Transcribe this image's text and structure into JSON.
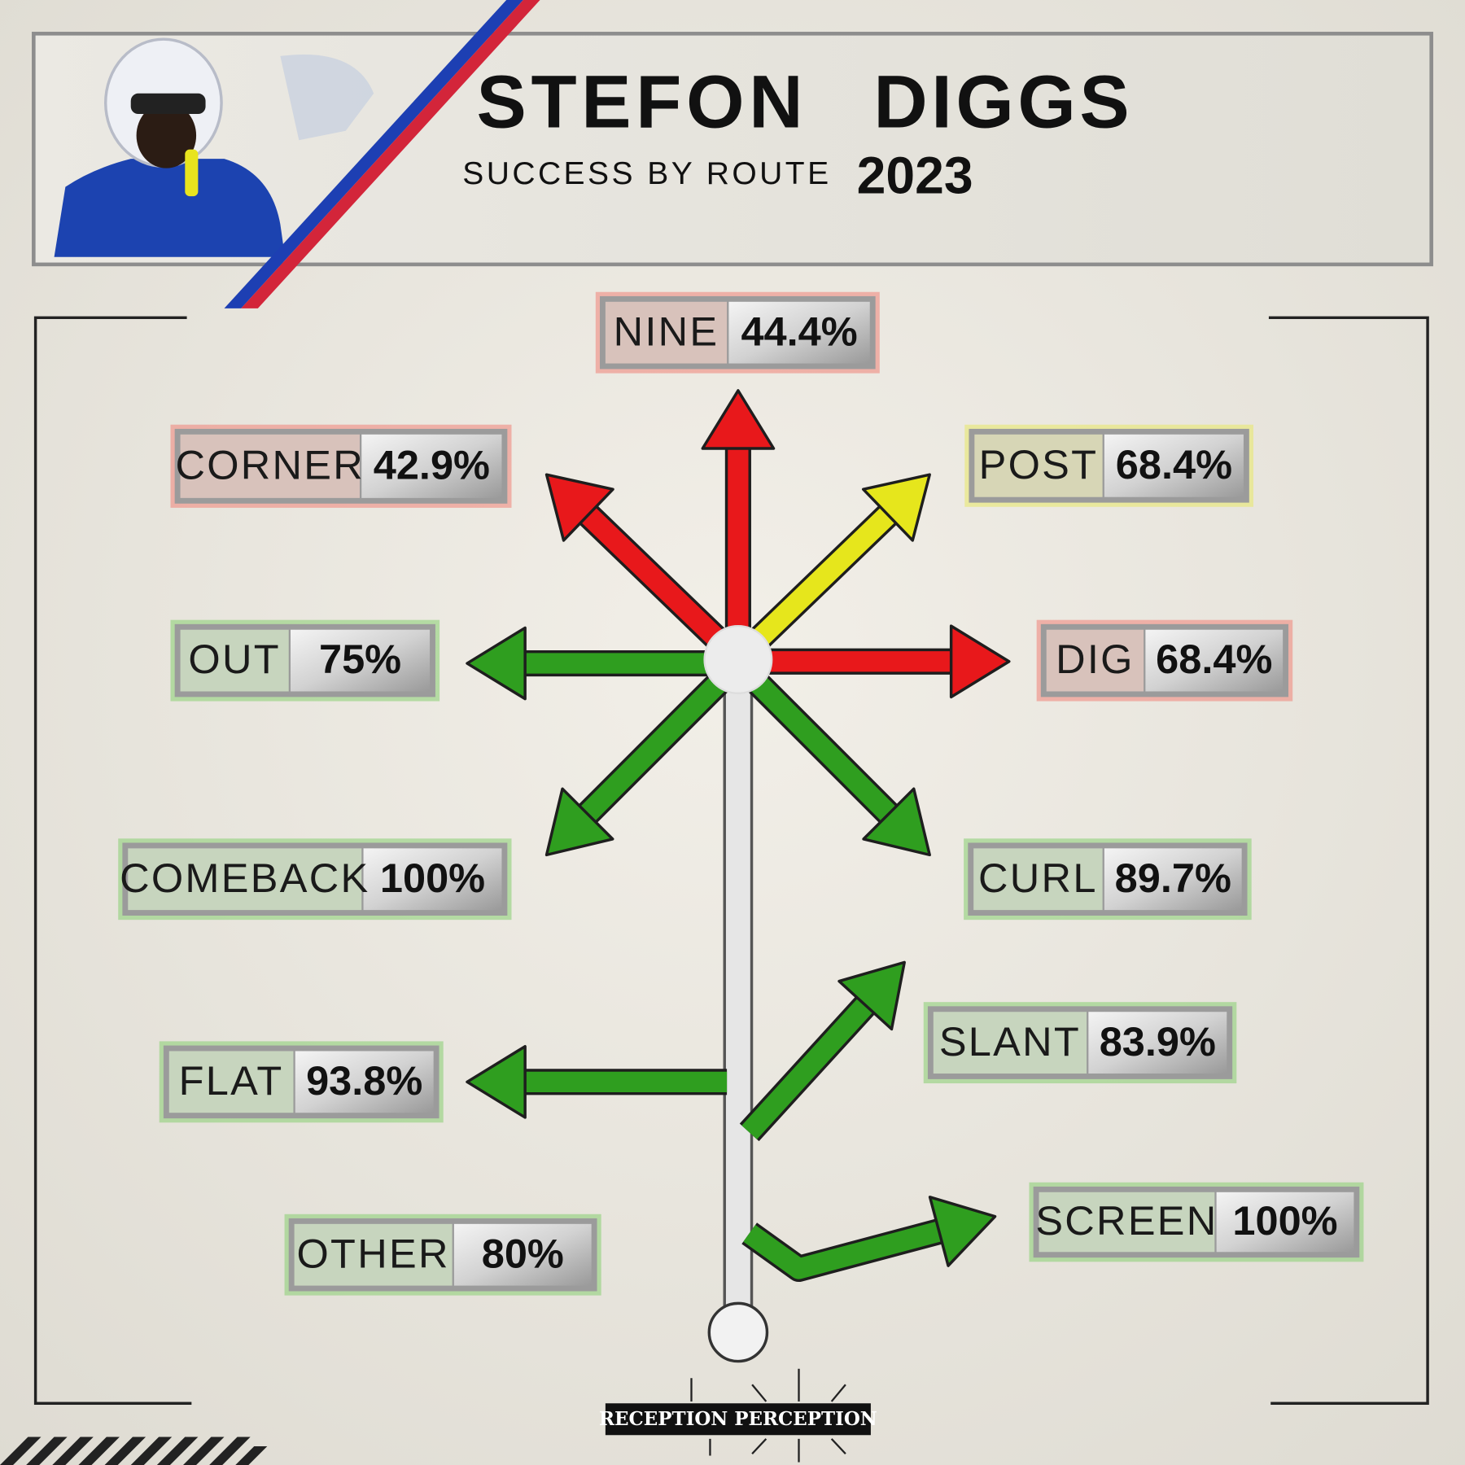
{
  "header": {
    "first_name": "STEFON",
    "last_name": "DIGGS",
    "subtitle": "SUCCESS BY ROUTE",
    "year": "2023"
  },
  "routes": [
    {
      "name": "NINE",
      "value": "44.4%"
    },
    {
      "name": "CORNER",
      "value": "42.9%"
    },
    {
      "name": "POST",
      "value": "68.4%"
    },
    {
      "name": "OUT",
      "value": "75%"
    },
    {
      "name": "DIG",
      "value": "68.4%"
    },
    {
      "name": "COMEBACK",
      "value": "100%"
    },
    {
      "name": "CURL",
      "value": "89.7%"
    },
    {
      "name": "FLAT",
      "value": "93.8%"
    },
    {
      "name": "SLANT",
      "value": "83.9%"
    },
    {
      "name": "OTHER",
      "value": "80%"
    },
    {
      "name": "SCREEN",
      "value": "100%"
    }
  ],
  "logo": "RECEPTION PERCEPTION"
}
